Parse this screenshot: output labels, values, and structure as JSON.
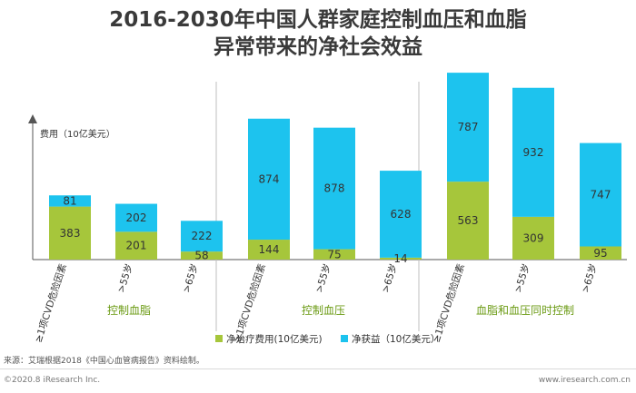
{
  "header": {
    "title_line1": "2016-2030年中国人群家庭控制血压和血脂",
    "title_line2": "异常带来的净社会效益"
  },
  "source_note": "来源：艾瑞根据2018《中国心血管病报告》资料绘制。",
  "footer": {
    "left": "©2020.8 iResearch Inc.",
    "right": "www.iresearch.com.cn"
  },
  "colors": {
    "treatment": "#a6c63b",
    "benefit": "#1dc3ee",
    "axis": "#555555",
    "divider": "#bfbfbf"
  },
  "chart_data": {
    "type": "bar",
    "stacked": true,
    "ylabel": "费用（10亿美元）",
    "categories": [
      "≥1项CVD危险因素",
      ">55岁",
      ">65岁",
      "≥1项CVD危险因素",
      ">55岁",
      ">65岁",
      "≥1项CVD危险因素",
      ">55岁",
      ">65岁"
    ],
    "groups": [
      {
        "label": "控制血脂",
        "indices": [
          0,
          1,
          2
        ]
      },
      {
        "label": "控制血压",
        "indices": [
          3,
          4,
          5
        ]
      },
      {
        "label": "血脂和血压同时控制",
        "indices": [
          6,
          7,
          8
        ]
      }
    ],
    "series": [
      {
        "name": "净治疗费用(10亿美元)",
        "color": "#a6c63b",
        "values": [
          383,
          201,
          58,
          144,
          75,
          14,
          563,
          309,
          95
        ]
      },
      {
        "name": "净获益（10亿美元）",
        "color": "#1dc3ee",
        "values": [
          81,
          202,
          222,
          874,
          878,
          628,
          787,
          932,
          747
        ]
      }
    ],
    "legend_position": "bottom"
  }
}
